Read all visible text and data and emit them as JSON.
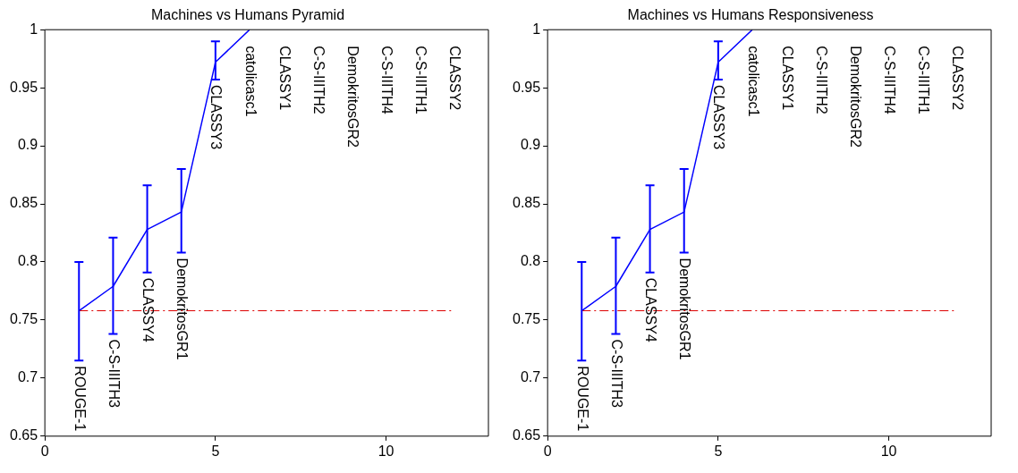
{
  "chart_data": [
    {
      "type": "line",
      "title": "Machines vs Humans Pyramid",
      "x": [
        1,
        2,
        3,
        4,
        5,
        6
      ],
      "series": [
        {
          "color": "#0000ff",
          "values": [
            0.758,
            0.779,
            0.828,
            0.843,
            0.972,
            1.0
          ],
          "errors": [
            [
              0.715,
              0.8
            ],
            [
              0.738,
              0.821
            ],
            [
              0.791,
              0.866
            ],
            [
              0.808,
              0.88
            ],
            [
              0.957,
              0.99
            ],
            null
          ]
        }
      ],
      "xlim": [
        0,
        13
      ],
      "xticks": [
        0,
        5,
        10
      ],
      "ylim": [
        0.65,
        1
      ],
      "yticks": [
        0.65,
        0.7,
        0.75,
        0.8,
        0.85,
        0.9,
        0.95,
        1
      ],
      "ref_lines": [
        {
          "axis": "y",
          "value": 0.758,
          "color": "#dd0000",
          "line_style": "dashdot"
        }
      ],
      "annotations": [
        "ROUGE-1",
        "C-S-IIITH3",
        "CLASSY4",
        "DemokritosGR1",
        "CLASSY3",
        "catolicasc1",
        "CLASSY1",
        "C-S-IIITH2",
        "DemokritosGR2",
        "C-S-IIITH4",
        "C-S-IIITH1",
        "CLASSY2"
      ],
      "grid": false,
      "legend": false
    },
    {
      "type": "line",
      "title": "Machines vs Humans Responsiveness",
      "x": [
        1,
        2,
        3,
        4,
        5,
        6
      ],
      "series": [
        {
          "color": "#0000ff",
          "values": [
            0.758,
            0.779,
            0.828,
            0.843,
            0.972,
            1.0
          ],
          "errors": [
            [
              0.715,
              0.8
            ],
            [
              0.738,
              0.821
            ],
            [
              0.791,
              0.866
            ],
            [
              0.808,
              0.88
            ],
            [
              0.957,
              0.99
            ],
            null
          ]
        }
      ],
      "xlim": [
        0,
        13
      ],
      "xticks": [
        0,
        5,
        10
      ],
      "ylim": [
        0.65,
        1
      ],
      "yticks": [
        0.65,
        0.7,
        0.75,
        0.8,
        0.85,
        0.9,
        0.95,
        1
      ],
      "ref_lines": [
        {
          "axis": "y",
          "value": 0.758,
          "color": "#dd0000",
          "line_style": "dashdot"
        }
      ],
      "annotations": [
        "ROUGE-1",
        "C-S-IIITH3",
        "CLASSY4",
        "DemokritosGR1",
        "CLASSY3",
        "catolicasc1",
        "CLASSY1",
        "C-S-IIITH2",
        "DemokritosGR2",
        "C-S-IIITH4",
        "C-S-IIITH1",
        "CLASSY2"
      ],
      "grid": false,
      "legend": false
    }
  ]
}
